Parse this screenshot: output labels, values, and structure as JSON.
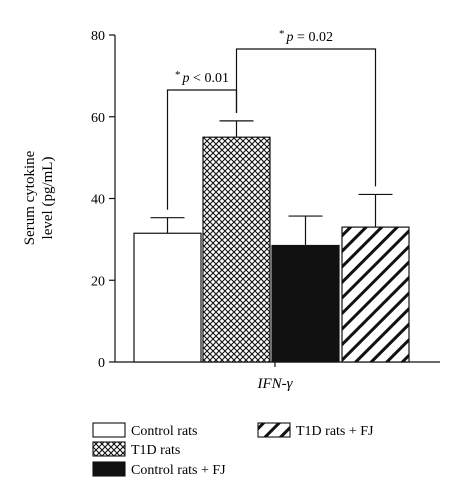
{
  "chart_data": {
    "type": "bar",
    "title": "",
    "xlabel": "IFN-γ",
    "ylabel_line1": "Serum cytokine",
    "ylabel_line2": "level (pg/mL)",
    "ylim": [
      0,
      80
    ],
    "yticks": [
      0,
      20,
      40,
      60,
      80
    ],
    "series": [
      {
        "name": "Control rats",
        "value": 31.5,
        "error": 3.8,
        "fill": "white"
      },
      {
        "name": "T1D rats",
        "value": 55,
        "error": 4,
        "fill": "crosshatch"
      },
      {
        "name": "Control rats + FJ",
        "value": 28.5,
        "error": 7.2,
        "fill": "black"
      },
      {
        "name": "T1D rats + FJ",
        "value": 33,
        "error": 8,
        "fill": "diagonal"
      }
    ],
    "annotations": [
      {
        "star": "*",
        "text": "p < 0.01",
        "from": 0,
        "to": 1
      },
      {
        "star": "*",
        "text": "p = 0.02",
        "from": 1,
        "to": 3
      }
    ],
    "legend_placement": "bottom",
    "grid": false
  },
  "colors": {
    "bar_edge": "#111111",
    "black_fill": "#111111"
  }
}
